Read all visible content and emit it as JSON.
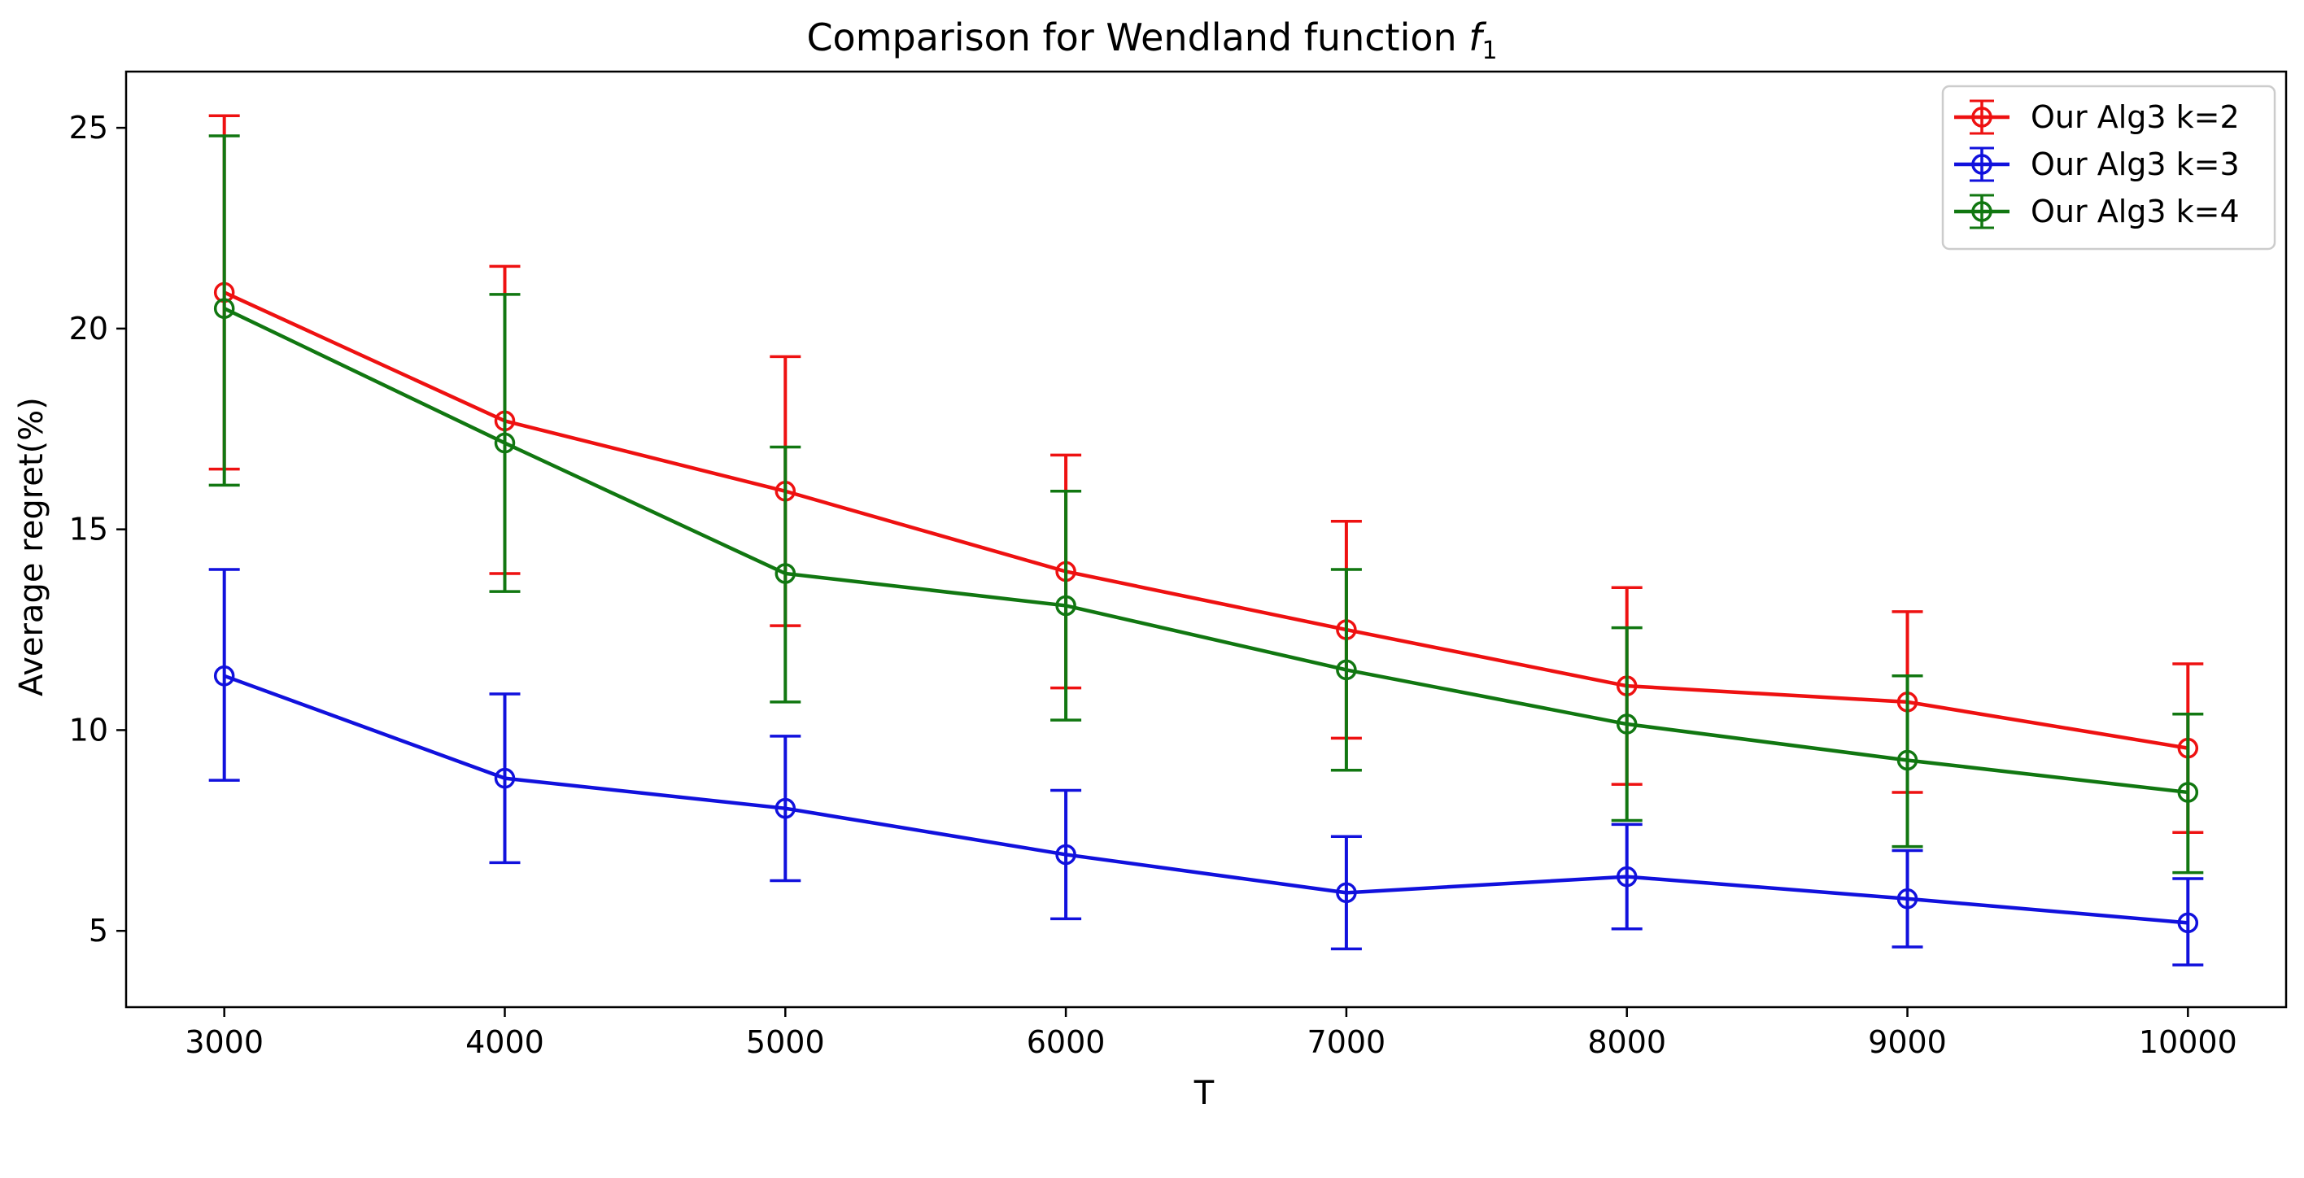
{
  "chart_data": {
    "type": "line",
    "title": "Comparison for Wendland function ",
    "title_math": "f",
    "title_math_sub": "1",
    "xlabel": "T",
    "ylabel": "Average regret(%)",
    "x": [
      3000,
      4000,
      5000,
      6000,
      7000,
      8000,
      9000,
      10000
    ],
    "xlim": [
      2650,
      10350
    ],
    "ylim": [
      3.1,
      26.4
    ],
    "xticks": [
      3000,
      4000,
      5000,
      6000,
      7000,
      8000,
      9000,
      10000
    ],
    "yticks": [
      5,
      10,
      15,
      20,
      25
    ],
    "grid": false,
    "legend_position": "top-right",
    "marker": "open-circle",
    "error_bars": true,
    "series": [
      {
        "name": "Our Alg3 k=2",
        "color": "#ee1111",
        "values": [
          20.9,
          17.7,
          15.95,
          13.95,
          12.5,
          11.1,
          10.7,
          9.55
        ],
        "err_low": [
          16.5,
          13.9,
          12.6,
          11.05,
          9.8,
          8.65,
          8.45,
          7.45
        ],
        "err_high": [
          25.3,
          21.55,
          19.3,
          16.85,
          15.2,
          13.55,
          12.95,
          11.65
        ]
      },
      {
        "name": "Our Alg3 k=3",
        "color": "#1111dd",
        "values": [
          11.35,
          8.8,
          8.05,
          6.9,
          5.95,
          6.35,
          5.8,
          5.2
        ],
        "err_low": [
          8.75,
          6.7,
          6.25,
          5.3,
          4.55,
          5.05,
          4.6,
          4.15
        ],
        "err_high": [
          14.0,
          10.9,
          9.85,
          8.5,
          7.35,
          7.65,
          7.0,
          6.3
        ]
      },
      {
        "name": "Our Alg3 k=4",
        "color": "#117711",
        "values": [
          20.5,
          17.15,
          13.9,
          13.1,
          11.5,
          10.15,
          9.25,
          8.45
        ],
        "err_low": [
          16.1,
          13.45,
          10.7,
          10.25,
          9.0,
          7.75,
          7.1,
          6.45
        ],
        "err_high": [
          24.8,
          20.85,
          17.05,
          15.95,
          14.0,
          12.55,
          11.35,
          10.4
        ]
      }
    ]
  }
}
